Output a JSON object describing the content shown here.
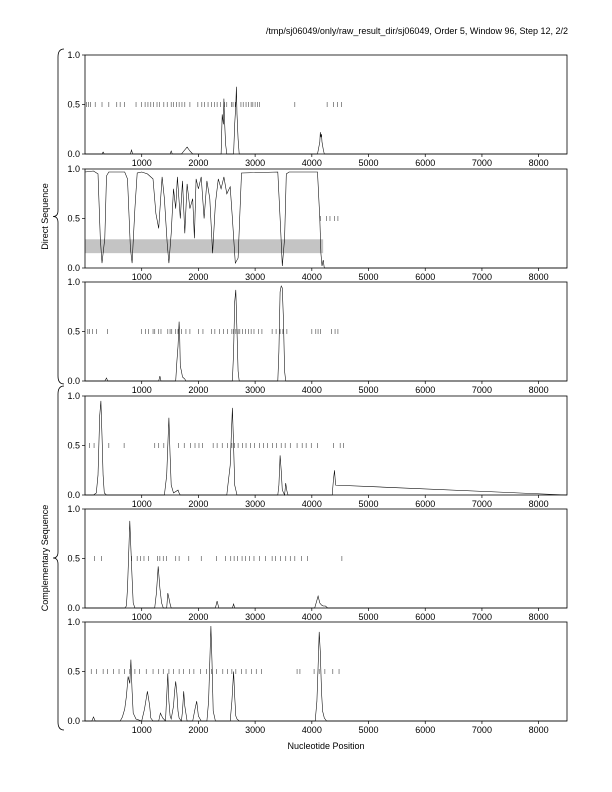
{
  "header": "/tmp/sj06049/only/raw_result_dir/sj06049, Order 5, Window 96, Step 12, 2/2",
  "groups": [
    "Direct Sequence",
    "Complementary Sequence"
  ],
  "chart_data": [
    {
      "type": "line",
      "frame": 1,
      "group": "Direct Sequence",
      "xlabel": "",
      "ylabel": "",
      "xlim": [
        0,
        8500
      ],
      "ylim": [
        0,
        1
      ],
      "xticks": [
        1000,
        2000,
        3000,
        4000,
        5000,
        6000,
        7000,
        8000
      ],
      "yticks": [
        0.0,
        0.5,
        1.0
      ],
      "series": [
        {
          "x": [
            0,
            300,
            320,
            340,
            800,
            820,
            840,
            1500,
            1520,
            1540,
            1700,
            1800,
            1850,
            1900,
            2400,
            2420,
            2440,
            2450,
            2460,
            2480,
            2500,
            2620,
            2640,
            2660,
            2670,
            2680,
            2700,
            2720,
            4100,
            4140,
            4150,
            4160,
            4170,
            4180,
            4200,
            4220,
            8500
          ],
          "y": [
            0,
            0,
            0.02,
            0,
            0,
            0.04,
            0,
            0,
            0.03,
            0,
            0,
            0.07,
            0.03,
            0,
            0,
            0.4,
            0.3,
            0.56,
            0.35,
            0.1,
            0,
            0,
            0.3,
            0.5,
            0.68,
            0.4,
            0.15,
            0,
            0,
            0.12,
            0.22,
            0.17,
            0.2,
            0.12,
            0.05,
            0,
            0
          ]
        }
      ],
      "shaded_band": null,
      "sites": {
        "y": 0.5,
        "x": [
          30,
          60,
          100,
          180,
          300,
          420,
          560,
          620,
          700,
          900,
          1000,
          1060,
          1110,
          1160,
          1210,
          1270,
          1310,
          1390,
          1450,
          1520,
          1560,
          1610,
          1660,
          1710,
          1760,
          1850,
          1990,
          2060,
          2110,
          2170,
          2230,
          2280,
          2330,
          2390,
          2460,
          2500,
          2580,
          2610,
          2650,
          2750,
          2790,
          2840,
          2880,
          2930,
          2960,
          3000,
          3040,
          3080,
          3700,
          4270,
          4380,
          4450,
          4520
        ]
      }
    },
    {
      "type": "line",
      "frame": 2,
      "group": "Direct Sequence",
      "xlabel": "",
      "ylabel": "",
      "xlim": [
        0,
        8500
      ],
      "ylim": [
        0,
        1
      ],
      "xticks": [
        1000,
        2000,
        3000,
        4000,
        5000,
        6000,
        7000,
        8000
      ],
      "yticks": [
        0.0,
        0.5,
        1.0
      ],
      "series": [
        {
          "x": [
            0,
            150,
            230,
            270,
            300,
            350,
            380,
            420,
            700,
            750,
            800,
            830,
            880,
            920,
            1000,
            1100,
            1200,
            1250,
            1300,
            1360,
            1400,
            1450,
            1480,
            1520,
            1560,
            1600,
            1630,
            1680,
            1720,
            1760,
            1800,
            1850,
            1900,
            1930,
            1960,
            2000,
            2050,
            2100,
            2150,
            2200,
            2250,
            2300,
            2350,
            2400,
            2450,
            2500,
            2560,
            2600,
            2650,
            2700,
            2760,
            3400,
            3450,
            3480,
            3520,
            3550,
            3600,
            4100,
            4140,
            4160,
            4180,
            4200,
            4220,
            8500
          ],
          "y": [
            0.97,
            0.98,
            0.95,
            0.3,
            0.05,
            0.3,
            0.93,
            0.97,
            0.97,
            0.9,
            0.2,
            0.05,
            0.6,
            0.96,
            0.97,
            0.95,
            0.9,
            0.55,
            0.4,
            0.92,
            0.7,
            0.25,
            0.05,
            0.35,
            0.8,
            0.6,
            0.92,
            0.5,
            0.88,
            0.35,
            0.85,
            0.6,
            0.7,
            0.3,
            0.9,
            0.8,
            0.92,
            0.5,
            0.88,
            0.7,
            0.15,
            0.65,
            0.9,
            0.8,
            0.92,
            0.75,
            0.82,
            0.5,
            0.05,
            0.1,
            0.96,
            0.97,
            0.4,
            0.02,
            0.3,
            0.95,
            0.97,
            0.97,
            0.5,
            0.15,
            0.02,
            0.08,
            0,
            0
          ]
        }
      ],
      "shaded_band": {
        "x": [
          0,
          4200
        ],
        "y": [
          0.15,
          0.29
        ]
      },
      "sites": {
        "y": 0.5,
        "x": [
          4150,
          4260,
          4320,
          4400,
          4460
        ]
      }
    },
    {
      "type": "line",
      "frame": 3,
      "group": "Direct Sequence",
      "xlabel": "",
      "ylabel": "",
      "xlim": [
        0,
        8500
      ],
      "ylim": [
        0,
        1
      ],
      "xticks": [
        1000,
        2000,
        3000,
        4000,
        5000,
        6000,
        7000,
        8000
      ],
      "yticks": [
        0.0,
        0.5,
        1.0
      ],
      "series": [
        {
          "x": [
            0,
            350,
            380,
            400,
            1300,
            1320,
            1340,
            1600,
            1620,
            1640,
            1660,
            1670,
            1680,
            1700,
            1720,
            1760,
            1780,
            2600,
            2620,
            2640,
            2660,
            2680,
            2700,
            2720,
            3400,
            3420,
            3440,
            3460,
            3480,
            3500,
            3520,
            3540,
            8500
          ],
          "y": [
            0,
            0,
            0.03,
            0,
            0,
            0.05,
            0,
            0,
            0.2,
            0.35,
            0.6,
            0.45,
            0.15,
            0.1,
            0.04,
            0.02,
            0,
            0,
            0.3,
            0.8,
            0.92,
            0.5,
            0.1,
            0,
            0,
            0.3,
            0.9,
            0.96,
            0.94,
            0.6,
            0.1,
            0,
            0
          ]
        }
      ],
      "shaded_band": null,
      "sites": {
        "y": 0.5,
        "x": [
          50,
          80,
          130,
          200,
          400,
          1000,
          1070,
          1120,
          1200,
          1230,
          1300,
          1340,
          1460,
          1500,
          1530,
          1600,
          1640,
          1700,
          1780,
          1850,
          2000,
          2080,
          2230,
          2290,
          2370,
          2440,
          2510,
          2590,
          2620,
          2660,
          2700,
          2730,
          2780,
          2830,
          2880,
          2930,
          2980,
          3060,
          3120,
          3300,
          3370,
          3440,
          3490,
          3560,
          4000,
          4070,
          4110,
          4150,
          4350,
          4410,
          4460
        ]
      }
    },
    {
      "type": "line",
      "frame": 4,
      "group": "Complementary Sequence",
      "xlabel": "",
      "ylabel": "",
      "xlim": [
        0,
        8500
      ],
      "ylim": [
        0,
        1
      ],
      "xticks": [
        1000,
        2000,
        3000,
        4000,
        5000,
        6000,
        7000,
        8000
      ],
      "yticks": [
        0.0,
        0.5,
        1.0
      ],
      "series": [
        {
          "x": [
            0,
            150,
            200,
            230,
            260,
            280,
            300,
            320,
            340,
            380,
            1400,
            1440,
            1460,
            1480,
            1500,
            1520,
            1560,
            1640,
            1660,
            1680,
            2500,
            2520,
            2560,
            2580,
            2600,
            2620,
            2640,
            2680,
            3400,
            3420,
            3440,
            3460,
            3480,
            3520,
            3540,
            3560,
            3580,
            4360,
            4380,
            4400,
            4420,
            8500
          ],
          "y": [
            0,
            0,
            0.02,
            0.2,
            0.8,
            0.95,
            0.6,
            0.2,
            0.02,
            0,
            0,
            0.2,
            0.5,
            0.78,
            0.4,
            0.1,
            0.02,
            0.05,
            0.02,
            0,
            0,
            0.1,
            0.3,
            0.6,
            0.88,
            0.5,
            0.1,
            0,
            0,
            0.1,
            0.4,
            0.25,
            0.05,
            0,
            0.12,
            0.04,
            0,
            0,
            0.15,
            0.25,
            0.1,
            0
          ]
        }
      ],
      "shaded_band": null,
      "sites": {
        "y": 0.5,
        "x": [
          80,
          160,
          420,
          690,
          1230,
          1300,
          1390,
          1650,
          1750,
          1860,
          1940,
          2010,
          2070,
          2260,
          2330,
          2420,
          2510,
          2590,
          2640,
          2700,
          2780,
          2840,
          2920,
          2990,
          3080,
          3150,
          3220,
          3310,
          3380,
          3460,
          3530,
          3620,
          3740,
          3830,
          3900,
          3990,
          4100,
          4380,
          4500,
          4560
        ]
      }
    },
    {
      "type": "line",
      "frame": 5,
      "group": "Complementary Sequence",
      "xlabel": "",
      "ylabel": "",
      "xlim": [
        0,
        8500
      ],
      "ylim": [
        0,
        1
      ],
      "xticks": [
        1000,
        2000,
        3000,
        4000,
        5000,
        6000,
        7000,
        8000
      ],
      "yticks": [
        0.0,
        0.5,
        1.0
      ],
      "series": [
        {
          "x": [
            0,
            700,
            730,
            750,
            770,
            790,
            810,
            830,
            850,
            880,
            1230,
            1260,
            1290,
            1320,
            1350,
            1380,
            1440,
            1460,
            1480,
            1500,
            1520,
            2300,
            2330,
            2360,
            2600,
            2620,
            2640,
            4050,
            4080,
            4110,
            4140,
            4170,
            4200,
            4240,
            4280,
            8500
          ],
          "y": [
            0,
            0,
            0.02,
            0.2,
            0.55,
            0.88,
            0.6,
            0.3,
            0.05,
            0,
            0,
            0.15,
            0.42,
            0.2,
            0.05,
            0,
            0,
            0.15,
            0.1,
            0.04,
            0,
            0,
            0.07,
            0,
            0,
            0.04,
            0,
            0,
            0.06,
            0.12,
            0.05,
            0.03,
            0.02,
            0.02,
            0,
            0
          ]
        }
      ],
      "shaded_band": null,
      "sites": {
        "y": 0.5,
        "x": [
          170,
          290,
          820,
          920,
          980,
          1040,
          1120,
          1280,
          1320,
          1380,
          1440,
          1600,
          1660,
          1830,
          2050,
          2320,
          2480,
          2570,
          2630,
          2690,
          2770,
          2830,
          2900,
          2980,
          3080,
          3180,
          3300,
          3360,
          3450,
          3540,
          3620,
          3700,
          3820,
          3920,
          4530
        ]
      }
    },
    {
      "type": "line",
      "frame": 6,
      "group": "Complementary Sequence",
      "xlabel": "",
      "ylabel": "",
      "xlim": [
        0,
        8500
      ],
      "ylim": [
        0,
        1
      ],
      "xticks": [
        1000,
        2000,
        3000,
        4000,
        5000,
        6000,
        7000,
        8000
      ],
      "yticks": [
        0.0,
        0.5,
        1.0
      ],
      "series": [
        {
          "x": [
            0,
            120,
            150,
            180,
            620,
            660,
            700,
            730,
            760,
            790,
            810,
            830,
            850,
            900,
            1000,
            1050,
            1100,
            1140,
            1160,
            1200,
            1300,
            1330,
            1370,
            1420,
            1440,
            1460,
            1480,
            1500,
            1520,
            1560,
            1580,
            1600,
            1620,
            1640,
            1660,
            1700,
            1720,
            1740,
            1760,
            1800,
            1900,
            1940,
            1970,
            2000,
            2050,
            2150,
            2180,
            2200,
            2220,
            2240,
            2260,
            2300,
            2560,
            2590,
            2620,
            2640,
            2660,
            2680,
            2720,
            4060,
            4090,
            4110,
            4130,
            4150,
            4170,
            4190,
            4220,
            4260,
            8500
          ],
          "y": [
            0,
            0,
            0.04,
            0,
            0,
            0.04,
            0.12,
            0.25,
            0.45,
            0.38,
            0.62,
            0.3,
            0.08,
            0.02,
            0,
            0.12,
            0.3,
            0.16,
            0.03,
            0,
            0,
            0.08,
            0.03,
            0,
            0.25,
            0.48,
            0.2,
            0.05,
            0.02,
            0.15,
            0.3,
            0.4,
            0.28,
            0.1,
            0.03,
            0,
            0.1,
            0.3,
            0.15,
            0,
            0,
            0.12,
            0.2,
            0.05,
            0,
            0,
            0.2,
            0.6,
            0.96,
            0.6,
            0.1,
            0,
            0,
            0.2,
            0.5,
            0.25,
            0.05,
            0.02,
            0,
            0,
            0.2,
            0.55,
            0.9,
            0.7,
            0.3,
            0.1,
            0.03,
            0,
            0
          ]
        }
      ],
      "shaded_band": null,
      "sites": {
        "y": 0.5,
        "x": [
          110,
          200,
          320,
          400,
          500,
          600,
          700,
          790,
          880,
          960,
          1080,
          1200,
          1300,
          1380,
          1480,
          1560,
          1660,
          1740,
          1840,
          1920,
          2040,
          2140,
          2230,
          2320,
          2430,
          2510,
          2590,
          2660,
          2760,
          2840,
          2940,
          3020,
          3110,
          3740,
          3790,
          4040,
          4130,
          4230,
          4370,
          4480
        ]
      }
    }
  ]
}
